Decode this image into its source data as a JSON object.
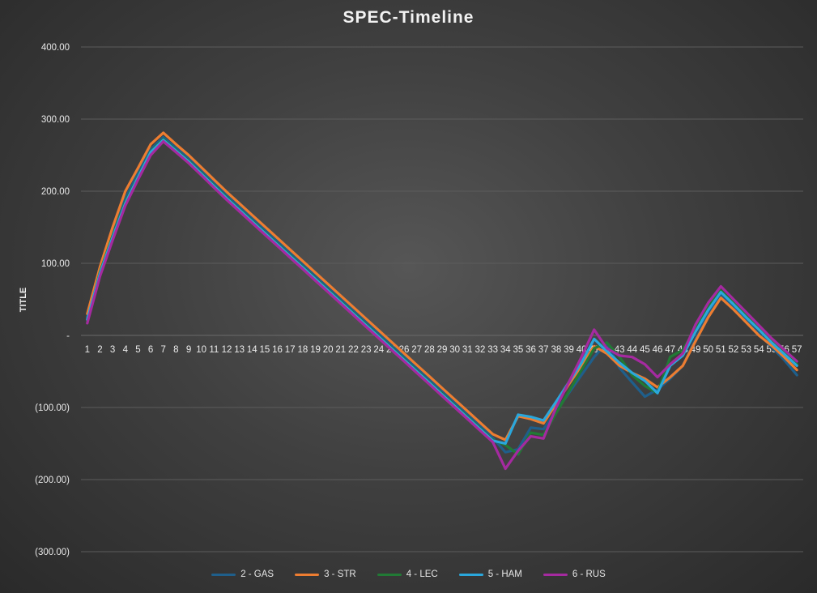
{
  "chart_data": {
    "type": "line",
    "title": "SPEC-Timeline",
    "ylabel": "TITLE",
    "xlabel": "",
    "ylim": [
      -300,
      400
    ],
    "yticks": [
      {
        "value": 400,
        "label": "400.00"
      },
      {
        "value": 300,
        "label": "300.00"
      },
      {
        "value": 200,
        "label": "200.00"
      },
      {
        "value": 100,
        "label": "100.00"
      },
      {
        "value": 0,
        "label": "-"
      },
      {
        "value": -100,
        "label": "(100.00)"
      },
      {
        "value": -200,
        "label": "(200.00)"
      },
      {
        "value": -300,
        "label": "(300.00)"
      }
    ],
    "x": [
      1,
      2,
      3,
      4,
      5,
      6,
      7,
      8,
      9,
      10,
      11,
      12,
      13,
      14,
      15,
      16,
      17,
      18,
      19,
      20,
      21,
      22,
      23,
      24,
      25,
      26,
      27,
      28,
      29,
      30,
      31,
      32,
      33,
      34,
      35,
      36,
      37,
      38,
      39,
      40,
      41,
      42,
      43,
      44,
      45,
      46,
      47,
      48,
      49,
      50,
      51,
      52,
      53,
      54,
      55,
      56,
      57
    ],
    "grid": true,
    "legend_position": "bottom",
    "series": [
      {
        "name": "2 - GAS",
        "color": "#1f5f8b",
        "values": [
          25,
          90,
          140,
          190,
          225,
          258,
          275,
          260,
          245,
          228,
          211,
          194,
          178,
          162,
          146,
          130,
          114,
          98,
          82,
          66,
          50,
          34,
          18,
          2,
          -14,
          -30,
          -46,
          -62,
          -78,
          -94,
          -110,
          -126,
          -142,
          -162,
          -158,
          -128,
          -130,
          -105,
          -80,
          -55,
          -30,
          -10,
          -45,
          -65,
          -85,
          -75,
          -60,
          -42,
          -5,
          30,
          55,
          38,
          20,
          2,
          -16,
          -34,
          -55
        ]
      },
      {
        "name": "3 - STR",
        "color": "#ed7d31",
        "values": [
          30,
          95,
          150,
          200,
          232,
          265,
          281,
          265,
          250,
          233,
          216,
          199,
          183,
          167,
          151,
          135,
          119,
          103,
          87,
          71,
          55,
          39,
          23,
          7,
          -9,
          -25,
          -41,
          -57,
          -73,
          -89,
          -105,
          -121,
          -137,
          -145,
          -112,
          -116,
          -122,
          -95,
          -68,
          -42,
          -15,
          -25,
          -42,
          -52,
          -60,
          -72,
          -58,
          -42,
          -8,
          25,
          52,
          36,
          18,
          0,
          -14,
          -30,
          -48
        ]
      },
      {
        "name": "4 - LEC",
        "color": "#217a35",
        "values": [
          20,
          88,
          138,
          185,
          220,
          255,
          272,
          257,
          242,
          225,
          208,
          191,
          175,
          159,
          143,
          127,
          111,
          95,
          79,
          63,
          47,
          31,
          15,
          -1,
          -17,
          -33,
          -49,
          -65,
          -81,
          -97,
          -113,
          -129,
          -145,
          -152,
          -165,
          -135,
          -138,
          -108,
          -78,
          -48,
          -18,
          -10,
          -30,
          -55,
          -70,
          -80,
          -30,
          -20,
          10,
          40,
          62,
          45,
          28,
          10,
          -8,
          -24,
          -40
        ]
      },
      {
        "name": "5 - HAM",
        "color": "#2aa7dc",
        "values": [
          22,
          86,
          136,
          183,
          219,
          254,
          271,
          256,
          241,
          224,
          207,
          190,
          174,
          158,
          142,
          126,
          110,
          94,
          78,
          62,
          46,
          30,
          14,
          -2,
          -18,
          -34,
          -50,
          -66,
          -82,
          -98,
          -114,
          -130,
          -146,
          -150,
          -110,
          -113,
          -118,
          -92,
          -65,
          -38,
          -5,
          -22,
          -38,
          -52,
          -63,
          -80,
          -42,
          -28,
          5,
          35,
          60,
          43,
          25,
          8,
          -10,
          -26,
          -42
        ]
      },
      {
        "name": "6 - RUS",
        "color": "#a52aa0",
        "values": [
          17,
          82,
          132,
          180,
          216,
          250,
          269,
          254,
          239,
          222,
          205,
          188,
          172,
          156,
          140,
          124,
          108,
          92,
          76,
          60,
          44,
          28,
          12,
          -4,
          -20,
          -36,
          -52,
          -68,
          -84,
          -100,
          -116,
          -132,
          -148,
          -185,
          -160,
          -140,
          -143,
          -100,
          -65,
          -30,
          8,
          -18,
          -28,
          -30,
          -40,
          -58,
          -40,
          -25,
          15,
          45,
          68,
          50,
          32,
          14,
          -4,
          -20,
          -36
        ]
      }
    ]
  }
}
